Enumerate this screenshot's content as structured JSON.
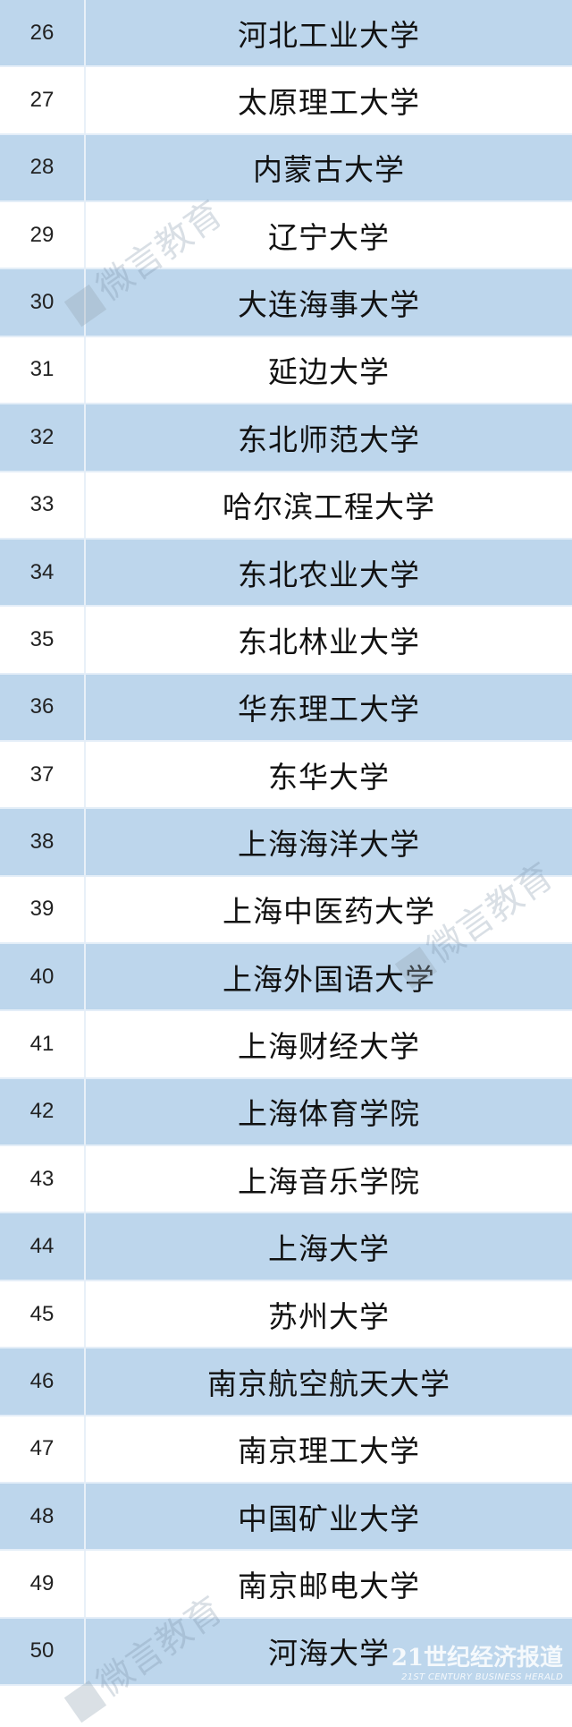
{
  "rows": [
    {
      "rank": "26",
      "name": "河北工业大学"
    },
    {
      "rank": "27",
      "name": "太原理工大学"
    },
    {
      "rank": "28",
      "name": "内蒙古大学"
    },
    {
      "rank": "29",
      "name": "辽宁大学"
    },
    {
      "rank": "30",
      "name": "大连海事大学"
    },
    {
      "rank": "31",
      "name": "延边大学"
    },
    {
      "rank": "32",
      "name": "东北师范大学"
    },
    {
      "rank": "33",
      "name": "哈尔滨工程大学"
    },
    {
      "rank": "34",
      "name": "东北农业大学"
    },
    {
      "rank": "35",
      "name": "东北林业大学"
    },
    {
      "rank": "36",
      "name": "华东理工大学"
    },
    {
      "rank": "37",
      "name": "东华大学"
    },
    {
      "rank": "38",
      "name": "上海海洋大学"
    },
    {
      "rank": "39",
      "name": "上海中医药大学"
    },
    {
      "rank": "40",
      "name": "上海外国语大学"
    },
    {
      "rank": "41",
      "name": "上海财经大学"
    },
    {
      "rank": "42",
      "name": "上海体育学院"
    },
    {
      "rank": "43",
      "name": "上海音乐学院"
    },
    {
      "rank": "44",
      "name": "上海大学"
    },
    {
      "rank": "45",
      "name": "苏州大学"
    },
    {
      "rank": "46",
      "name": "南京航空航天大学"
    },
    {
      "rank": "47",
      "name": "南京理工大学"
    },
    {
      "rank": "48",
      "name": "中国矿业大学"
    },
    {
      "rank": "49",
      "name": "南京邮电大学"
    },
    {
      "rank": "50",
      "name": "河海大学"
    }
  ],
  "watermark": "微言教育",
  "brand": {
    "cn": "21世纪经济报道",
    "en": "21ST CENTURY BUSINESS HERALD"
  },
  "colors": {
    "stripe": "#bdd6ec",
    "alt": "#ffffff"
  }
}
